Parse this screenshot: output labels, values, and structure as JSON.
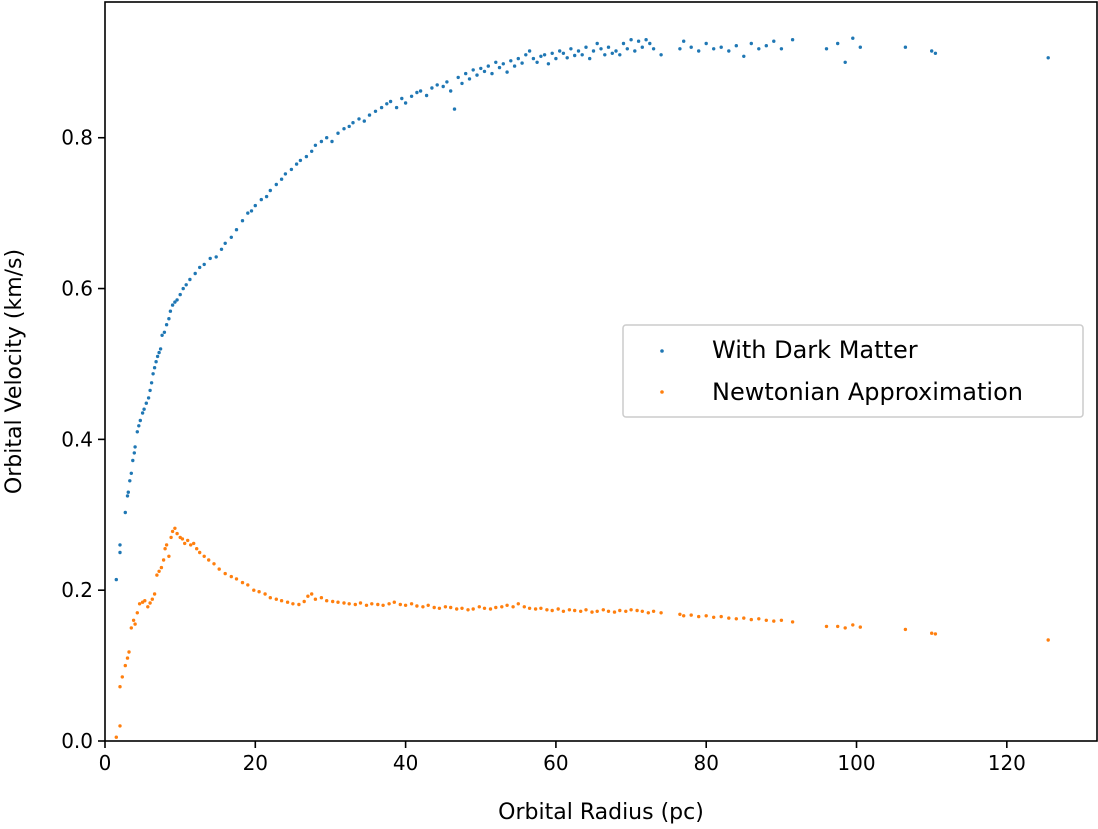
{
  "chart_data": {
    "type": "scatter",
    "title": "",
    "xlabel": "Orbital Radius (pc)",
    "ylabel": "Orbital Velocity (km/s)",
    "xlim": [
      0,
      132
    ],
    "ylim": [
      0,
      0.98
    ],
    "xticks": [
      "0",
      "20",
      "40",
      "60",
      "80",
      "100",
      "120"
    ],
    "yticks": [
      "0.0",
      "0.2",
      "0.4",
      "0.6",
      "0.8"
    ],
    "grid": false,
    "legend_position": "center-right",
    "series": [
      {
        "name": "With Dark Matter",
        "color": "#1f77b4",
        "points": [
          [
            1.5,
            0.214
          ],
          [
            2.0,
            0.26
          ],
          [
            2.0,
            0.25
          ],
          [
            2.7,
            0.303
          ],
          [
            3.0,
            0.325
          ],
          [
            3.1,
            0.33
          ],
          [
            3.3,
            0.345
          ],
          [
            3.5,
            0.355
          ],
          [
            3.7,
            0.372
          ],
          [
            3.9,
            0.382
          ],
          [
            4.0,
            0.39
          ],
          [
            4.3,
            0.41
          ],
          [
            4.5,
            0.418
          ],
          [
            4.7,
            0.425
          ],
          [
            5.0,
            0.435
          ],
          [
            5.2,
            0.44
          ],
          [
            5.5,
            0.448
          ],
          [
            5.8,
            0.455
          ],
          [
            6.0,
            0.465
          ],
          [
            6.2,
            0.475
          ],
          [
            6.4,
            0.487
          ],
          [
            6.6,
            0.495
          ],
          [
            6.8,
            0.503
          ],
          [
            7.0,
            0.51
          ],
          [
            7.2,
            0.515
          ],
          [
            7.4,
            0.52
          ],
          [
            7.6,
            0.538
          ],
          [
            7.9,
            0.542
          ],
          [
            8.2,
            0.552
          ],
          [
            8.5,
            0.56
          ],
          [
            8.7,
            0.57
          ],
          [
            9.0,
            0.578
          ],
          [
            9.3,
            0.582
          ],
          [
            9.6,
            0.585
          ],
          [
            10.0,
            0.592
          ],
          [
            10.4,
            0.6
          ],
          [
            10.8,
            0.605
          ],
          [
            11.3,
            0.612
          ],
          [
            12.0,
            0.62
          ],
          [
            12.6,
            0.628
          ],
          [
            13.2,
            0.632
          ],
          [
            14.0,
            0.64
          ],
          [
            14.8,
            0.642
          ],
          [
            15.5,
            0.652
          ],
          [
            16.0,
            0.66
          ],
          [
            16.8,
            0.668
          ],
          [
            17.5,
            0.678
          ],
          [
            18.3,
            0.69
          ],
          [
            19.0,
            0.7
          ],
          [
            19.5,
            0.703
          ],
          [
            20.0,
            0.71
          ],
          [
            20.8,
            0.718
          ],
          [
            21.5,
            0.722
          ],
          [
            22.0,
            0.73
          ],
          [
            22.8,
            0.738
          ],
          [
            23.5,
            0.745
          ],
          [
            24.0,
            0.752
          ],
          [
            24.8,
            0.758
          ],
          [
            25.5,
            0.765
          ],
          [
            26.0,
            0.77
          ],
          [
            26.8,
            0.775
          ],
          [
            27.5,
            0.782
          ],
          [
            28.0,
            0.79
          ],
          [
            28.8,
            0.795
          ],
          [
            29.5,
            0.8
          ],
          [
            30.2,
            0.795
          ],
          [
            31.0,
            0.806
          ],
          [
            31.8,
            0.812
          ],
          [
            32.5,
            0.815
          ],
          [
            33.0,
            0.82
          ],
          [
            33.8,
            0.825
          ],
          [
            34.5,
            0.822
          ],
          [
            35.2,
            0.83
          ],
          [
            36.0,
            0.835
          ],
          [
            36.8,
            0.84
          ],
          [
            37.5,
            0.845
          ],
          [
            38.0,
            0.848
          ],
          [
            38.8,
            0.84
          ],
          [
            39.5,
            0.852
          ],
          [
            40.0,
            0.846
          ],
          [
            40.8,
            0.855
          ],
          [
            41.5,
            0.86
          ],
          [
            42.0,
            0.862
          ],
          [
            42.8,
            0.856
          ],
          [
            43.5,
            0.866
          ],
          [
            44.2,
            0.87
          ],
          [
            45.0,
            0.868
          ],
          [
            45.5,
            0.874
          ],
          [
            46.0,
            0.862
          ],
          [
            46.5,
            0.838
          ],
          [
            47.0,
            0.88
          ],
          [
            47.5,
            0.872
          ],
          [
            48.0,
            0.885
          ],
          [
            48.5,
            0.878
          ],
          [
            49.0,
            0.89
          ],
          [
            49.5,
            0.883
          ],
          [
            50.0,
            0.892
          ],
          [
            50.5,
            0.888
          ],
          [
            51.0,
            0.895
          ],
          [
            51.5,
            0.885
          ],
          [
            52.0,
            0.9
          ],
          [
            52.5,
            0.893
          ],
          [
            53.0,
            0.898
          ],
          [
            53.5,
            0.887
          ],
          [
            54.0,
            0.902
          ],
          [
            54.5,
            0.895
          ],
          [
            55.0,
            0.905
          ],
          [
            55.5,
            0.899
          ],
          [
            56.0,
            0.91
          ],
          [
            56.5,
            0.915
          ],
          [
            57.0,
            0.905
          ],
          [
            57.5,
            0.9
          ],
          [
            58.0,
            0.908
          ],
          [
            58.5,
            0.91
          ],
          [
            59.0,
            0.898
          ],
          [
            59.5,
            0.912
          ],
          [
            60.0,
            0.905
          ],
          [
            60.5,
            0.915
          ],
          [
            61.0,
            0.912
          ],
          [
            61.5,
            0.906
          ],
          [
            62.0,
            0.918
          ],
          [
            62.5,
            0.909
          ],
          [
            63.0,
            0.915
          ],
          [
            63.5,
            0.91
          ],
          [
            64.0,
            0.92
          ],
          [
            64.5,
            0.905
          ],
          [
            65.0,
            0.915
          ],
          [
            65.5,
            0.925
          ],
          [
            66.0,
            0.918
          ],
          [
            66.5,
            0.91
          ],
          [
            67.0,
            0.92
          ],
          [
            67.5,
            0.912
          ],
          [
            68.0,
            0.915
          ],
          [
            68.5,
            0.91
          ],
          [
            69.0,
            0.925
          ],
          [
            69.5,
            0.918
          ],
          [
            70.0,
            0.93
          ],
          [
            70.5,
            0.915
          ],
          [
            71.0,
            0.928
          ],
          [
            71.5,
            0.92
          ],
          [
            72.0,
            0.93
          ],
          [
            72.5,
            0.925
          ],
          [
            73.0,
            0.918
          ],
          [
            74.0,
            0.91
          ],
          [
            76.5,
            0.918
          ],
          [
            77.0,
            0.928
          ],
          [
            78.0,
            0.92
          ],
          [
            79.0,
            0.915
          ],
          [
            80.0,
            0.925
          ],
          [
            81.0,
            0.918
          ],
          [
            82.0,
            0.92
          ],
          [
            83.0,
            0.915
          ],
          [
            84.0,
            0.922
          ],
          [
            85.0,
            0.908
          ],
          [
            86.0,
            0.925
          ],
          [
            87.0,
            0.918
          ],
          [
            88.0,
            0.922
          ],
          [
            89.0,
            0.928
          ],
          [
            90.0,
            0.918
          ],
          [
            91.5,
            0.93
          ],
          [
            96.0,
            0.918
          ],
          [
            97.5,
            0.925
          ],
          [
            98.5,
            0.9
          ],
          [
            99.5,
            0.932
          ],
          [
            100.5,
            0.92
          ],
          [
            106.5,
            0.92
          ],
          [
            110.0,
            0.915
          ],
          [
            110.5,
            0.912
          ],
          [
            125.5,
            0.906
          ]
        ]
      },
      {
        "name": "Newtonian Approximation",
        "color": "#ff7f0e",
        "points": [
          [
            1.5,
            0.005
          ],
          [
            2.0,
            0.02
          ],
          [
            2.0,
            0.072
          ],
          [
            2.3,
            0.085
          ],
          [
            2.7,
            0.1
          ],
          [
            3.0,
            0.11
          ],
          [
            3.2,
            0.118
          ],
          [
            3.5,
            0.15
          ],
          [
            3.8,
            0.16
          ],
          [
            4.0,
            0.155
          ],
          [
            4.3,
            0.17
          ],
          [
            4.6,
            0.182
          ],
          [
            5.0,
            0.184
          ],
          [
            5.3,
            0.186
          ],
          [
            5.7,
            0.178
          ],
          [
            6.0,
            0.183
          ],
          [
            6.3,
            0.188
          ],
          [
            6.6,
            0.195
          ],
          [
            6.9,
            0.22
          ],
          [
            7.2,
            0.225
          ],
          [
            7.5,
            0.23
          ],
          [
            7.8,
            0.24
          ],
          [
            8.0,
            0.255
          ],
          [
            8.2,
            0.26
          ],
          [
            8.5,
            0.245
          ],
          [
            8.8,
            0.27
          ],
          [
            9.0,
            0.278
          ],
          [
            9.3,
            0.282
          ],
          [
            9.6,
            0.275
          ],
          [
            10.0,
            0.27
          ],
          [
            10.3,
            0.268
          ],
          [
            10.6,
            0.262
          ],
          [
            11.0,
            0.266
          ],
          [
            11.4,
            0.26
          ],
          [
            11.8,
            0.262
          ],
          [
            12.2,
            0.255
          ],
          [
            12.6,
            0.25
          ],
          [
            13.2,
            0.245
          ],
          [
            13.8,
            0.24
          ],
          [
            14.5,
            0.235
          ],
          [
            15.2,
            0.228
          ],
          [
            16.0,
            0.222
          ],
          [
            16.8,
            0.218
          ],
          [
            17.5,
            0.215
          ],
          [
            18.3,
            0.21
          ],
          [
            19.0,
            0.207
          ],
          [
            19.8,
            0.2
          ],
          [
            20.5,
            0.198
          ],
          [
            21.3,
            0.195
          ],
          [
            22.0,
            0.19
          ],
          [
            22.8,
            0.188
          ],
          [
            23.5,
            0.186
          ],
          [
            24.3,
            0.184
          ],
          [
            25.0,
            0.182
          ],
          [
            25.8,
            0.181
          ],
          [
            26.5,
            0.185
          ],
          [
            27.0,
            0.192
          ],
          [
            27.5,
            0.195
          ],
          [
            28.0,
            0.188
          ],
          [
            28.8,
            0.19
          ],
          [
            29.5,
            0.186
          ],
          [
            30.3,
            0.185
          ],
          [
            31.0,
            0.184
          ],
          [
            31.8,
            0.183
          ],
          [
            32.5,
            0.182
          ],
          [
            33.3,
            0.181
          ],
          [
            34.0,
            0.183
          ],
          [
            34.8,
            0.18
          ],
          [
            35.5,
            0.182
          ],
          [
            36.3,
            0.181
          ],
          [
            37.0,
            0.18
          ],
          [
            37.8,
            0.182
          ],
          [
            38.5,
            0.184
          ],
          [
            39.3,
            0.181
          ],
          [
            40.0,
            0.18
          ],
          [
            40.8,
            0.182
          ],
          [
            41.5,
            0.179
          ],
          [
            42.3,
            0.178
          ],
          [
            43.0,
            0.18
          ],
          [
            43.8,
            0.177
          ],
          [
            44.5,
            0.176
          ],
          [
            45.3,
            0.178
          ],
          [
            46.0,
            0.177
          ],
          [
            46.8,
            0.175
          ],
          [
            47.5,
            0.176
          ],
          [
            48.3,
            0.174
          ],
          [
            49.0,
            0.175
          ],
          [
            49.8,
            0.178
          ],
          [
            50.5,
            0.176
          ],
          [
            51.3,
            0.175
          ],
          [
            52.0,
            0.177
          ],
          [
            52.8,
            0.178
          ],
          [
            53.5,
            0.18
          ],
          [
            54.3,
            0.178
          ],
          [
            55.0,
            0.182
          ],
          [
            55.8,
            0.178
          ],
          [
            56.5,
            0.176
          ],
          [
            57.3,
            0.175
          ],
          [
            58.0,
            0.176
          ],
          [
            58.8,
            0.174
          ],
          [
            59.5,
            0.173
          ],
          [
            60.3,
            0.175
          ],
          [
            61.0,
            0.172
          ],
          [
            61.8,
            0.174
          ],
          [
            62.5,
            0.173
          ],
          [
            63.3,
            0.172
          ],
          [
            64.0,
            0.174
          ],
          [
            64.8,
            0.171
          ],
          [
            65.5,
            0.172
          ],
          [
            66.3,
            0.174
          ],
          [
            67.0,
            0.172
          ],
          [
            67.8,
            0.171
          ],
          [
            68.5,
            0.173
          ],
          [
            69.3,
            0.172
          ],
          [
            70.0,
            0.174
          ],
          [
            70.8,
            0.173
          ],
          [
            71.5,
            0.172
          ],
          [
            72.3,
            0.17
          ],
          [
            73.0,
            0.172
          ],
          [
            74.0,
            0.17
          ],
          [
            76.5,
            0.168
          ],
          [
            77.0,
            0.166
          ],
          [
            78.0,
            0.167
          ],
          [
            79.0,
            0.165
          ],
          [
            80.0,
            0.166
          ],
          [
            81.0,
            0.164
          ],
          [
            82.0,
            0.165
          ],
          [
            83.0,
            0.163
          ],
          [
            84.0,
            0.162
          ],
          [
            85.0,
            0.163
          ],
          [
            86.0,
            0.161
          ],
          [
            87.0,
            0.162
          ],
          [
            88.0,
            0.16
          ],
          [
            89.0,
            0.159
          ],
          [
            90.0,
            0.16
          ],
          [
            91.5,
            0.158
          ],
          [
            96.0,
            0.152
          ],
          [
            97.5,
            0.152
          ],
          [
            98.5,
            0.15
          ],
          [
            99.5,
            0.154
          ],
          [
            100.5,
            0.151
          ],
          [
            106.5,
            0.148
          ],
          [
            110.0,
            0.143
          ],
          [
            110.5,
            0.142
          ],
          [
            125.5,
            0.134
          ]
        ]
      }
    ]
  }
}
